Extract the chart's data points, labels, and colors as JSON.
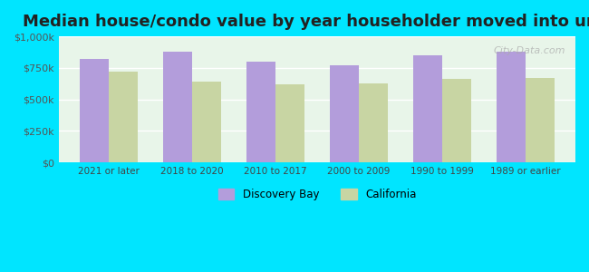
{
  "title": "Median house/condo value by year householder moved into unit",
  "categories": [
    "2021 or later",
    "2018 to 2020",
    "2010 to 2017",
    "2000 to 2009",
    "1990 to 1999",
    "1989 or earlier"
  ],
  "discovery_bay": [
    820000,
    880000,
    800000,
    770000,
    850000,
    880000
  ],
  "california": [
    720000,
    640000,
    620000,
    625000,
    660000,
    670000
  ],
  "bar_color_db": "#b39ddb",
  "bar_color_ca": "#c8d5a3",
  "background_outer": "#00e5ff",
  "background_inner": "#e8f5e9",
  "ylim": [
    0,
    1000000
  ],
  "yticks": [
    0,
    250000,
    500000,
    750000,
    1000000
  ],
  "ytick_labels": [
    "$0",
    "$250k",
    "$500k",
    "$750k",
    "$1,000k"
  ],
  "legend_db": "Discovery Bay",
  "legend_ca": "California",
  "title_fontsize": 13,
  "bar_width": 0.35,
  "grid_color": "#ffffff",
  "watermark": "City-Data.com"
}
